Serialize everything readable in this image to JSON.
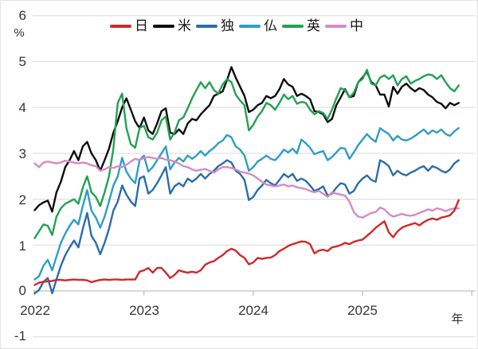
{
  "chart": {
    "y_unit": "%",
    "x_unit": "年",
    "y_ticks": [
      "6",
      "5",
      "4",
      "3",
      "2",
      "1",
      "0",
      "-1"
    ],
    "x_ticks": [
      "2022",
      "2023",
      "2024",
      "2025"
    ],
    "grid_color": "#d9d9d9",
    "axis_color": "#bfbfbf",
    "text_color": "#353535"
  },
  "chart_data": {
    "type": "line",
    "title": "",
    "xlabel": "年",
    "ylabel": "%",
    "ylim": [
      -1,
      6
    ],
    "xlim": [
      2022,
      2026
    ],
    "grid": true,
    "legend_position": "top-center",
    "legend_order": [
      "日",
      "米",
      "独",
      "仏",
      "英",
      "中"
    ],
    "x0": 2022.0,
    "dx": 0.04,
    "gridlines": [
      6,
      5,
      4,
      3,
      2,
      1,
      0,
      -1
    ],
    "x_tick_years": [
      2022,
      2023,
      2024,
      2025
    ],
    "draw_order": [
      1,
      2,
      3,
      4,
      5,
      0
    ],
    "series": [
      {
        "name": "日",
        "color": "#d02828",
        "values": [
          0.13,
          0.18,
          0.2,
          0.21,
          0.22,
          0.24,
          0.24,
          0.23,
          0.24,
          0.25,
          0.24,
          0.24,
          0.23,
          0.19,
          0.22,
          0.24,
          0.25,
          0.24,
          0.25,
          0.25,
          0.24,
          0.25,
          0.25,
          0.25,
          0.42,
          0.45,
          0.5,
          0.4,
          0.5,
          0.5,
          0.4,
          0.28,
          0.35,
          0.45,
          0.42,
          0.4,
          0.42,
          0.4,
          0.45,
          0.57,
          0.62,
          0.65,
          0.72,
          0.78,
          0.87,
          0.92,
          0.88,
          0.78,
          0.72,
          0.58,
          0.62,
          0.72,
          0.7,
          0.72,
          0.73,
          0.78,
          0.87,
          0.92,
          0.98,
          1.02,
          1.05,
          1.08,
          1.07,
          1.02,
          0.82,
          0.88,
          0.9,
          0.87,
          0.95,
          0.97,
          1.0,
          1.05,
          1.02,
          1.07,
          1.1,
          1.12,
          1.2,
          1.28,
          1.38,
          1.45,
          1.52,
          1.28,
          1.17,
          1.3,
          1.38,
          1.42,
          1.45,
          1.48,
          1.43,
          1.5,
          1.55,
          1.58,
          1.55,
          1.6,
          1.62,
          1.65,
          1.75,
          1.98
        ]
      },
      {
        "name": "米",
        "color": "#0d0d0d",
        "values": [
          1.76,
          1.87,
          1.93,
          1.97,
          1.73,
          2.15,
          2.38,
          2.7,
          2.85,
          3.05,
          2.85,
          3.15,
          3.25,
          3.0,
          2.85,
          2.62,
          2.85,
          3.1,
          3.45,
          3.7,
          4.0,
          4.2,
          3.95,
          3.7,
          3.55,
          3.78,
          3.5,
          3.42,
          3.65,
          3.92,
          3.98,
          3.45,
          3.42,
          3.52,
          3.42,
          3.65,
          3.75,
          3.72,
          3.85,
          3.95,
          4.05,
          4.25,
          4.3,
          4.35,
          4.6,
          4.88,
          4.65,
          4.45,
          4.25,
          3.9,
          3.95,
          4.05,
          4.1,
          4.25,
          4.2,
          4.25,
          4.4,
          4.62,
          4.5,
          4.45,
          4.25,
          4.3,
          4.25,
          4.18,
          3.92,
          3.9,
          3.85,
          3.68,
          3.75,
          4.05,
          4.22,
          4.4,
          4.22,
          4.25,
          4.55,
          4.65,
          4.78,
          4.55,
          4.48,
          4.28,
          4.28,
          4.02,
          4.45,
          4.3,
          4.45,
          4.52,
          4.42,
          4.35,
          4.42,
          4.38,
          4.28,
          4.22,
          4.12,
          4.08,
          3.98,
          4.1,
          4.05,
          4.1
        ]
      },
      {
        "name": "独",
        "color": "#2a6cac",
        "values": [
          -0.05,
          0.02,
          0.2,
          0.28,
          -0.05,
          0.25,
          0.55,
          0.78,
          0.95,
          1.1,
          0.95,
          1.35,
          1.7,
          1.2,
          1.05,
          0.8,
          1.05,
          1.35,
          1.75,
          1.95,
          2.3,
          2.1,
          1.95,
          1.85,
          2.45,
          2.5,
          2.12,
          2.2,
          2.35,
          2.52,
          2.7,
          2.12,
          2.28,
          2.35,
          2.28,
          2.45,
          2.38,
          2.45,
          2.55,
          2.45,
          2.55,
          2.62,
          2.72,
          2.78,
          2.85,
          2.8,
          2.62,
          2.55,
          2.42,
          1.98,
          2.05,
          2.2,
          2.3,
          2.42,
          2.35,
          2.3,
          2.42,
          2.55,
          2.48,
          2.55,
          2.4,
          2.45,
          2.4,
          2.3,
          2.18,
          2.22,
          2.28,
          2.08,
          2.12,
          2.25,
          2.35,
          2.32,
          2.12,
          2.18,
          2.35,
          2.45,
          2.52,
          2.42,
          2.38,
          2.85,
          2.8,
          2.72,
          2.52,
          2.62,
          2.55,
          2.52,
          2.58,
          2.62,
          2.68,
          2.72,
          2.62,
          2.72,
          2.68,
          2.62,
          2.58,
          2.65,
          2.78,
          2.85
        ]
      },
      {
        "name": "仏",
        "color": "#2f9dc6",
        "values": [
          0.25,
          0.32,
          0.55,
          0.68,
          0.45,
          0.75,
          1.05,
          1.25,
          1.42,
          1.55,
          1.45,
          1.85,
          2.2,
          1.75,
          1.6,
          1.38,
          1.62,
          1.95,
          2.3,
          2.5,
          2.9,
          2.6,
          2.45,
          2.35,
          2.85,
          2.95,
          2.6,
          2.7,
          2.85,
          3.0,
          3.15,
          2.65,
          2.8,
          2.9,
          2.82,
          2.95,
          2.88,
          2.95,
          3.05,
          2.95,
          3.05,
          3.12,
          3.22,
          3.28,
          3.4,
          3.35,
          3.15,
          3.08,
          2.95,
          2.62,
          2.7,
          2.82,
          2.88,
          2.95,
          2.88,
          2.85,
          2.95,
          3.08,
          3.02,
          3.1,
          3.0,
          3.3,
          3.22,
          3.12,
          2.98,
          3.02,
          3.05,
          2.85,
          2.92,
          3.02,
          3.12,
          3.1,
          2.88,
          3.02,
          3.18,
          3.3,
          3.42,
          3.32,
          3.25,
          3.55,
          3.48,
          3.42,
          3.28,
          3.38,
          3.3,
          3.28,
          3.32,
          3.38,
          3.45,
          3.52,
          3.42,
          3.5,
          3.45,
          3.52,
          3.42,
          3.38,
          3.48,
          3.55
        ]
      },
      {
        "name": "英",
        "color": "#22a152",
        "values": [
          1.15,
          1.3,
          1.45,
          1.42,
          1.22,
          1.62,
          1.8,
          1.9,
          1.95,
          2.0,
          1.9,
          2.25,
          2.5,
          2.15,
          2.05,
          1.85,
          2.15,
          2.5,
          3.1,
          4.1,
          4.3,
          3.55,
          3.2,
          3.12,
          3.55,
          3.6,
          3.35,
          3.3,
          3.45,
          3.72,
          3.8,
          3.3,
          3.45,
          3.72,
          3.78,
          3.98,
          4.2,
          4.38,
          4.55,
          4.42,
          4.55,
          4.38,
          4.3,
          4.5,
          4.62,
          4.55,
          4.28,
          4.15,
          4.05,
          3.5,
          3.62,
          3.8,
          3.92,
          4.1,
          4.05,
          3.95,
          4.1,
          4.28,
          4.18,
          4.25,
          4.08,
          4.12,
          4.1,
          3.95,
          3.85,
          3.92,
          3.88,
          3.75,
          3.95,
          4.2,
          4.42,
          4.38,
          4.22,
          4.32,
          4.55,
          4.62,
          4.82,
          4.52,
          4.48,
          4.65,
          4.7,
          4.62,
          4.7,
          4.48,
          4.62,
          4.68,
          4.52,
          4.58,
          4.62,
          4.68,
          4.72,
          4.7,
          4.62,
          4.7,
          4.55,
          4.42,
          4.35,
          4.48
        ]
      },
      {
        "name": "中",
        "color": "#d78ac6",
        "values": [
          2.78,
          2.7,
          2.8,
          2.82,
          2.8,
          2.78,
          2.8,
          2.84,
          2.82,
          2.8,
          2.78,
          2.8,
          2.78,
          2.74,
          2.72,
          2.62,
          2.65,
          2.7,
          2.68,
          2.72,
          2.7,
          2.75,
          2.82,
          2.88,
          2.85,
          2.9,
          2.92,
          2.9,
          2.88,
          2.9,
          2.86,
          2.85,
          2.82,
          2.78,
          2.72,
          2.7,
          2.65,
          2.62,
          2.64,
          2.66,
          2.62,
          2.58,
          2.65,
          2.7,
          2.7,
          2.68,
          2.65,
          2.6,
          2.58,
          2.56,
          2.52,
          2.45,
          2.38,
          2.32,
          2.3,
          2.28,
          2.3,
          2.32,
          2.28,
          2.3,
          2.26,
          2.24,
          2.22,
          2.18,
          2.15,
          2.18,
          2.12,
          2.05,
          2.15,
          2.12,
          2.1,
          2.08,
          1.95,
          1.72,
          1.62,
          1.6,
          1.65,
          1.7,
          1.72,
          1.82,
          1.78,
          1.68,
          1.62,
          1.65,
          1.68,
          1.65,
          1.64,
          1.66,
          1.7,
          1.74,
          1.78,
          1.75,
          1.8,
          1.78,
          1.74,
          1.78,
          1.8,
          1.8
        ]
      }
    ]
  }
}
